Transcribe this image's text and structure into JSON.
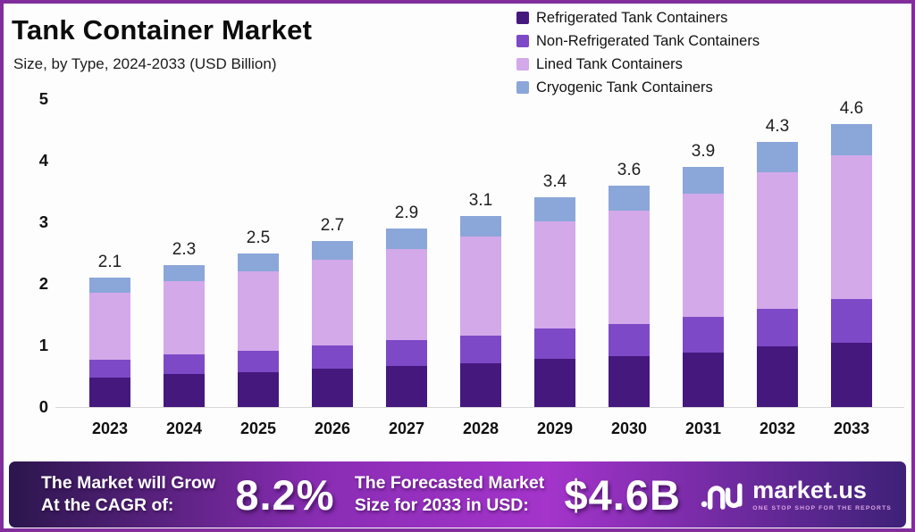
{
  "frame": {
    "border_color": "#812d9c",
    "background": "#fdfdfd"
  },
  "header": {
    "title": "Tank Container Market",
    "subtitle": "Size, by Type, 2024-2033 (USD Billion)"
  },
  "chart_data": {
    "type": "bar",
    "stacked": true,
    "title": "Tank Container Market",
    "subtitle": "Size, by Type, 2024-2033 (USD Billion)",
    "unit": "USD Billion",
    "categories": [
      "2023",
      "2024",
      "2025",
      "2026",
      "2027",
      "2028",
      "2029",
      "2030",
      "2031",
      "2032",
      "2033"
    ],
    "series": [
      {
        "name": "Refrigerated Tank Containers",
        "color": "#45187e",
        "values": [
          0.48,
          0.53,
          0.57,
          0.62,
          0.67,
          0.71,
          0.78,
          0.83,
          0.89,
          0.98,
          1.05
        ]
      },
      {
        "name": "Non-Refrigerated Tank Containers",
        "color": "#7e49c6",
        "values": [
          0.29,
          0.32,
          0.35,
          0.38,
          0.41,
          0.45,
          0.49,
          0.52,
          0.57,
          0.62,
          0.7
        ]
      },
      {
        "name": "Lined Tank Containers",
        "color": "#d3a9ea",
        "values": [
          1.09,
          1.19,
          1.29,
          1.39,
          1.49,
          1.61,
          1.74,
          1.84,
          2.0,
          2.21,
          2.33
        ]
      },
      {
        "name": "Cryogenic Tank Containers",
        "color": "#8ba6d9",
        "values": [
          0.24,
          0.26,
          0.29,
          0.31,
          0.33,
          0.33,
          0.39,
          0.41,
          0.44,
          0.49,
          0.52
        ]
      }
    ],
    "totals": [
      2.1,
      2.3,
      2.5,
      2.7,
      2.9,
      3.1,
      3.4,
      3.6,
      3.9,
      4.3,
      4.6
    ],
    "ylim": [
      0,
      5
    ],
    "yticks": [
      0,
      1,
      2,
      3,
      4,
      5
    ],
    "grid": false,
    "legend_position": "top-right"
  },
  "banner": {
    "bg_gradient": [
      "#2b164d",
      "#8a2db4",
      "#a434cb",
      "#3e2178"
    ],
    "cagr_label_line1": "The Market will Grow",
    "cagr_label_line2": "At the CAGR of:",
    "cagr_value": "8.2%",
    "forecast_label_line1": "The Forecasted Market",
    "forecast_label_line2": "Size for 2033 in USD:",
    "forecast_value": "$4.6B",
    "brand_name": "market.us",
    "brand_tagline": "ONE STOP SHOP FOR THE REPORTS"
  }
}
